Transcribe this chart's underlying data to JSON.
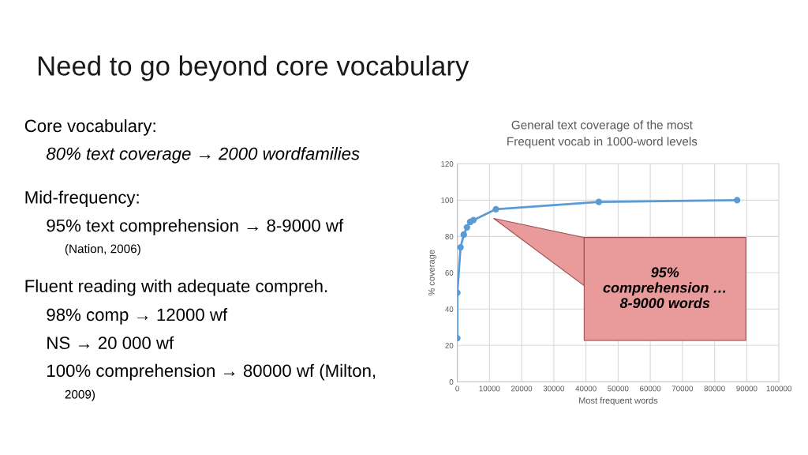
{
  "chart_data": {
    "type": "line",
    "title": "Need to go beyond core vocabulary",
    "subtitle": "General text coverage of the most\nFrequent vocab in 1000-word levels",
    "xlabel": "Most frequent words",
    "ylabel": "% coverage",
    "x": [
      0,
      0,
      1000,
      2000,
      3000,
      4000,
      5000,
      12000,
      44000,
      87000
    ],
    "series": [
      {
        "color": "#5b9bd5",
        "values": [
          24,
          49,
          74,
          81,
          85,
          88,
          89,
          95,
          99,
          100
        ]
      }
    ],
    "xlim": [
      0,
      100000
    ],
    "xticks": [
      0,
      10000,
      20000,
      30000,
      40000,
      50000,
      60000,
      70000,
      80000,
      90000,
      100000
    ],
    "ylim": [
      0,
      120
    ],
    "yticks": [
      0,
      20,
      40,
      60,
      80,
      100,
      120
    ],
    "grid": true,
    "marker": "circle",
    "line_style": "solid",
    "annotations": [
      "95%\ncomprehension …\n8-9000 words",
      "Core vocabulary:",
      "80% text coverage → 2000 wordfamilies",
      "Mid-frequency:",
      "95% text comprehension → 8-9000 wf",
      "(Nation, 2006)",
      "Fluent reading with adequate compreh.",
      "98% comp → 12000 wf",
      "NS → 20 000 wf",
      "100% comprehension → 80000 wf (Milton,",
      "2009)"
    ]
  }
}
